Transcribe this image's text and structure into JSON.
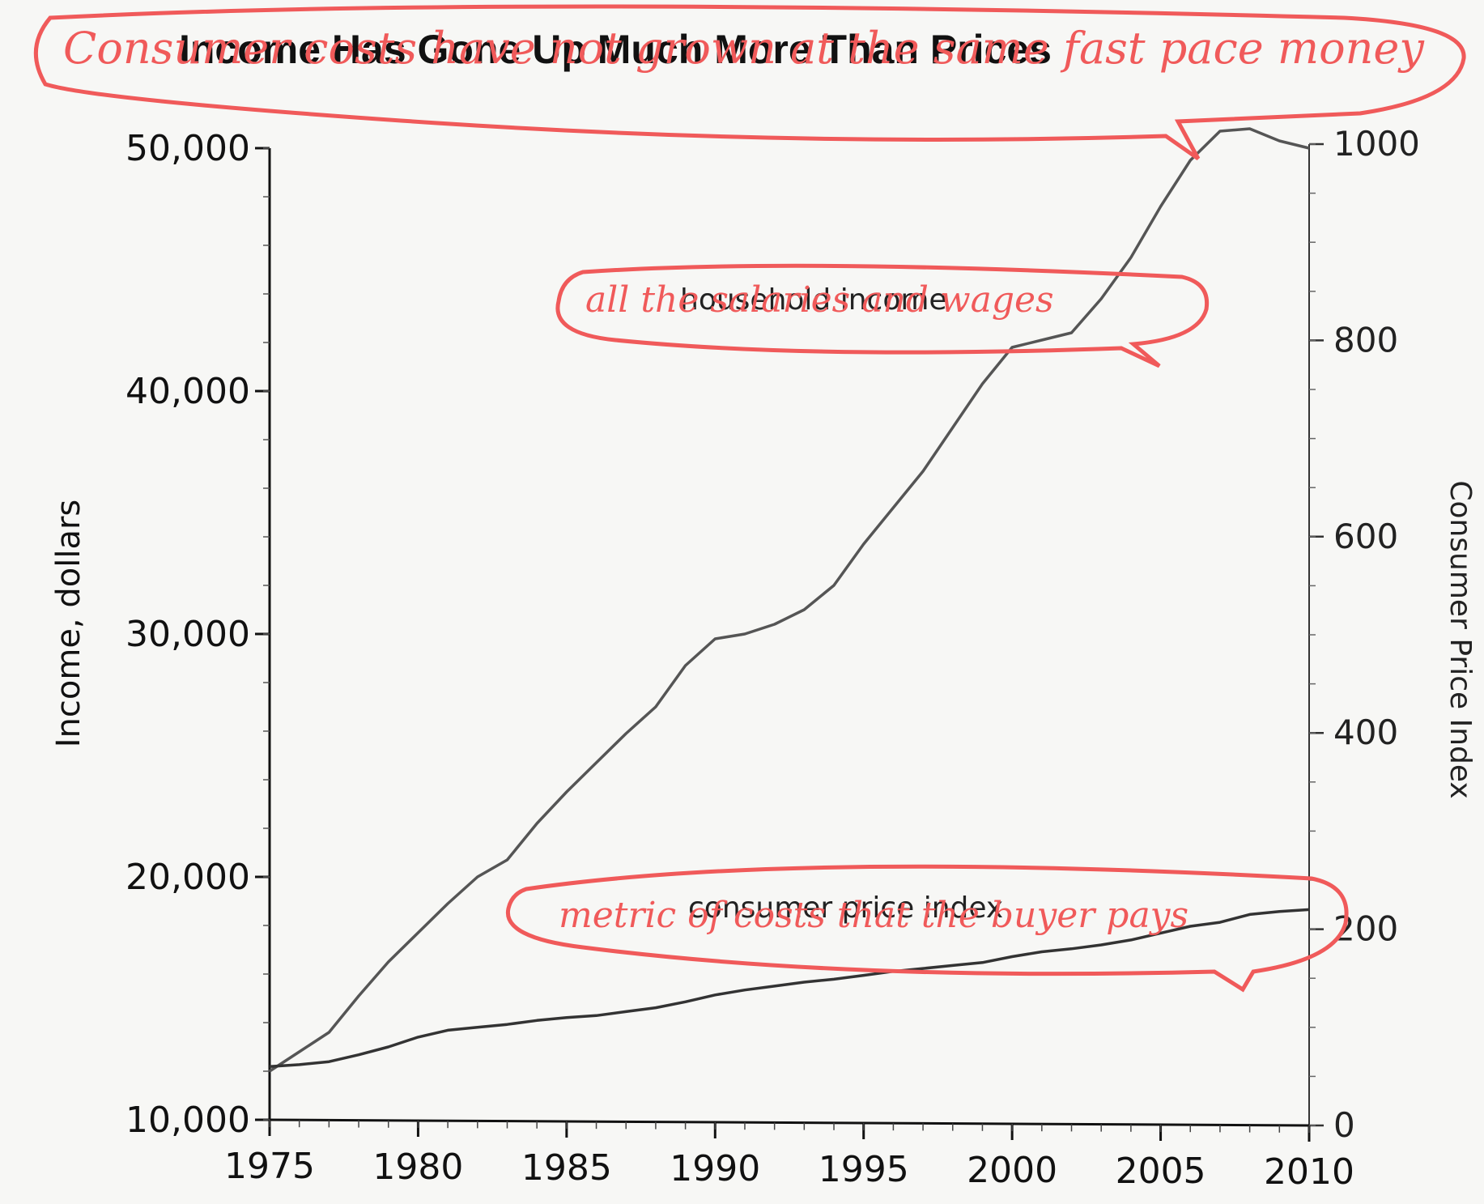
{
  "chart_data": {
    "type": "line",
    "title": "Income Has Gone Up Much More Than Prices",
    "ylabel_left": "Income, dollars",
    "ylabel_right": "Consumer Price Index",
    "xlim": [
      1975,
      2010
    ],
    "ylim_left": [
      10000,
      50000
    ],
    "ylim_right": [
      0,
      1000
    ],
    "x_ticks": [
      "1975",
      "1980",
      "1985",
      "1990",
      "1995",
      "2000",
      "2005",
      "2010"
    ],
    "y_left_ticks": [
      "10,000",
      "20,000",
      "30,000",
      "40,000",
      "50,000"
    ],
    "y_right_ticks": [
      "0",
      "200",
      "400",
      "600",
      "800",
      "1000"
    ],
    "grid": false,
    "series": [
      {
        "name": "household income",
        "axis": "left",
        "x": [
          1975,
          1976,
          1977,
          1978,
          1979,
          1980,
          1981,
          1982,
          1983,
          1984,
          1985,
          1986,
          1987,
          1988,
          1989,
          1990,
          1991,
          1992,
          1993,
          1994,
          1995,
          1996,
          1997,
          1998,
          1999,
          2000,
          2001,
          2002,
          2003,
          2004,
          2005,
          2006,
          2007,
          2008,
          2009,
          2010
        ],
        "y": [
          12000,
          12800,
          13600,
          15100,
          16500,
          17700,
          18900,
          20000,
          20700,
          22200,
          23500,
          24700,
          25900,
          27000,
          28700,
          29800,
          30000,
          30400,
          31000,
          32000,
          33700,
          35200,
          36700,
          38500,
          40300,
          41800,
          42100,
          42400,
          43800,
          45500,
          47600,
          49500,
          50700,
          50800,
          50300,
          50000
        ]
      },
      {
        "name": "consumer price index",
        "axis": "right",
        "x": [
          1975,
          1976,
          1977,
          1978,
          1979,
          1980,
          1981,
          1982,
          1983,
          1984,
          1985,
          1986,
          1987,
          1988,
          1989,
          1990,
          1991,
          1992,
          1993,
          1994,
          1995,
          1996,
          1997,
          1998,
          1999,
          2000,
          2001,
          2002,
          2003,
          2004,
          2005,
          2006,
          2007,
          2008,
          2009,
          2010
        ],
        "y": [
          60,
          62,
          65,
          72,
          80,
          90,
          97,
          100,
          103,
          107,
          110,
          112,
          116,
          120,
          126,
          133,
          138,
          142,
          146,
          149,
          153,
          157,
          160,
          163,
          166,
          172,
          177,
          180,
          184,
          189,
          196,
          203,
          207,
          215,
          218,
          220
        ]
      }
    ],
    "annotations": [
      {
        "text": "Consumer costs have not grown at the same fast pace money",
        "target": "title"
      },
      {
        "text": "all the salaries and wages",
        "target": "household income"
      },
      {
        "text": "metric of costs that the buyer pays",
        "target": "consumer price index"
      }
    ]
  }
}
